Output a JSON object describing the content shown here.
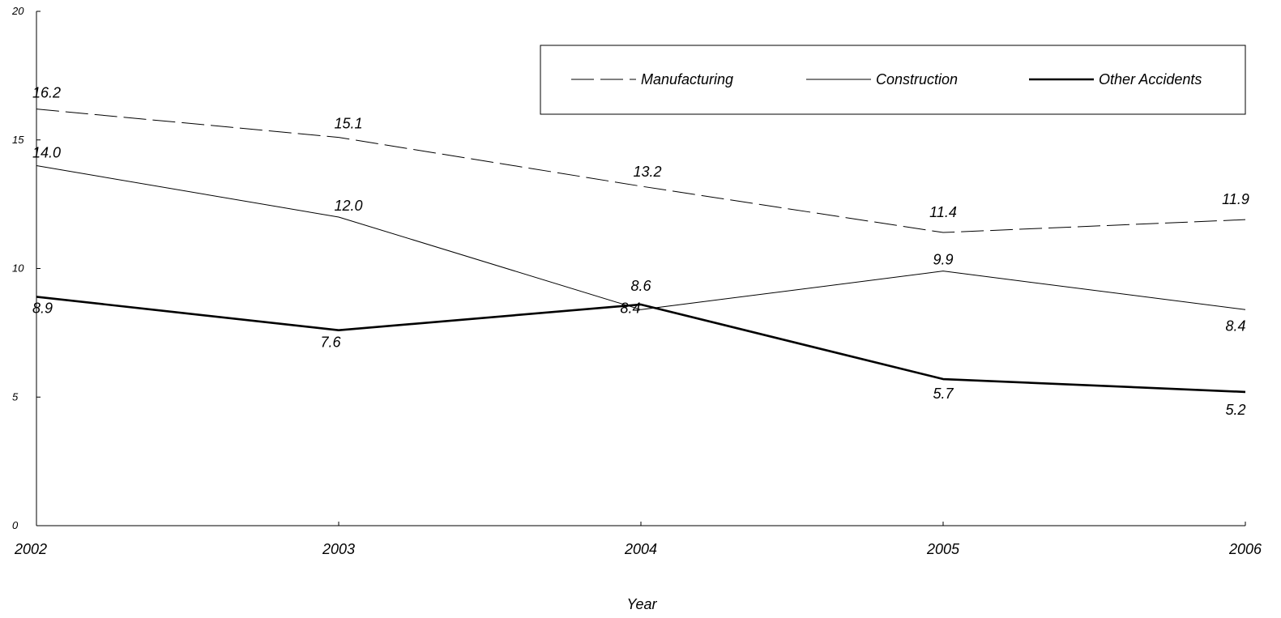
{
  "chart_data": {
    "type": "line",
    "title": "",
    "xlabel": "Year",
    "ylabel": "",
    "x": [
      "2002",
      "2003",
      "2004",
      "2005",
      "2006"
    ],
    "ylim": [
      0,
      20
    ],
    "yticks": [
      0,
      5,
      10,
      15,
      20
    ],
    "grid": false,
    "legend_position": "top-right",
    "series": [
      {
        "name": "Manufacturing",
        "values": [
          16.2,
          15.1,
          13.2,
          11.4,
          11.9
        ],
        "labels": [
          "16.2",
          "15.1",
          "13.2",
          "11.4",
          "11.9"
        ],
        "style": "dashed",
        "color": "#000000"
      },
      {
        "name": "Construction",
        "values": [
          14.0,
          12.0,
          8.4,
          9.9,
          8.4
        ],
        "labels": [
          "14.0",
          "12.0",
          "8.4",
          "9.9",
          "8.4"
        ],
        "style": "thin",
        "color": "#000000"
      },
      {
        "name": "Other Accidents",
        "values": [
          8.9,
          7.6,
          8.6,
          5.7,
          5.2
        ],
        "labels": [
          "8.9",
          "7.6",
          "8.6",
          "5.7",
          "5.2"
        ],
        "style": "thick",
        "color": "#000000"
      }
    ]
  }
}
